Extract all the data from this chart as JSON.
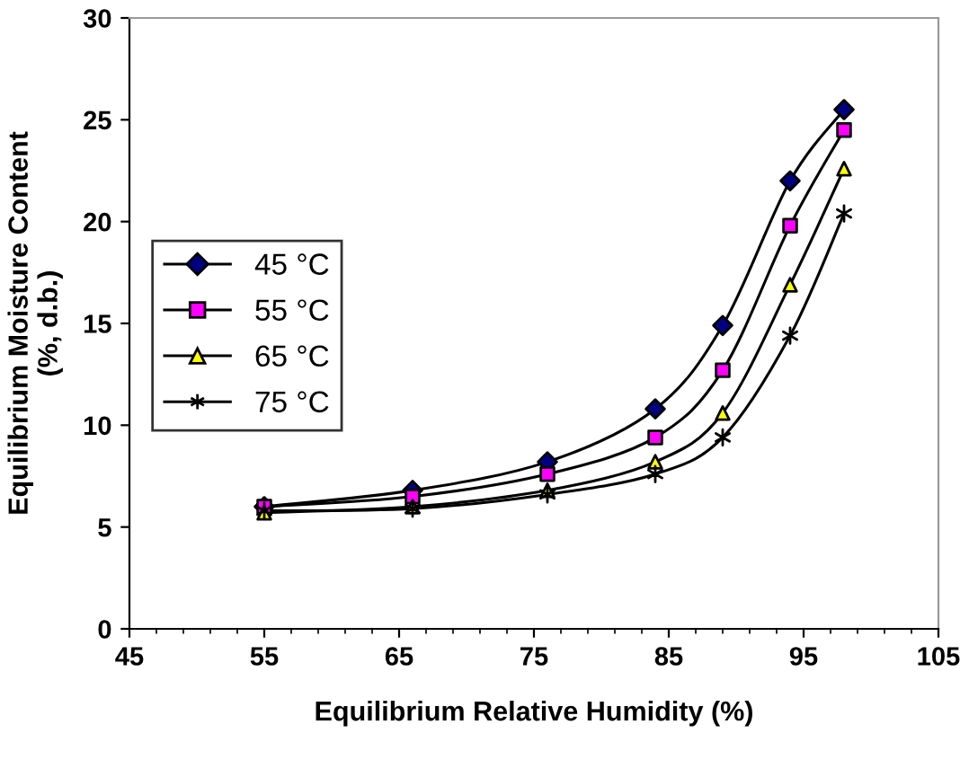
{
  "chart_data": {
    "type": "line",
    "xlabel": "Equilibrium Relative Humidity (%)",
    "ylabel": "Equilibrium Moisture Content\n(%, d.b.)",
    "x": [
      55,
      66,
      76,
      84,
      89,
      94,
      98
    ],
    "series": [
      {
        "name": "45 °C",
        "color": "#000080",
        "marker": "diamond",
        "values": [
          6.0,
          6.8,
          8.2,
          10.8,
          14.9,
          22.0,
          25.5
        ]
      },
      {
        "name": "55 °C",
        "color": "#ff00ff",
        "marker": "square",
        "values": [
          6.0,
          6.5,
          7.6,
          9.4,
          12.7,
          19.8,
          24.5
        ]
      },
      {
        "name": "65 °C",
        "color": "#ffff00",
        "marker": "triangle",
        "values": [
          5.7,
          6.0,
          6.8,
          8.2,
          10.6,
          16.9,
          22.6
        ]
      },
      {
        "name": "75 °C",
        "color": "#000000",
        "marker": "cross",
        "values": [
          5.8,
          5.9,
          6.6,
          7.6,
          9.4,
          14.4,
          20.4
        ]
      }
    ],
    "xlim": [
      45,
      105
    ],
    "xticks": [
      45,
      55,
      65,
      75,
      85,
      95,
      105
    ],
    "ylim": [
      0,
      30
    ],
    "yticks": [
      0,
      5,
      10,
      15,
      20,
      25,
      30
    ],
    "grid": false,
    "legend": "left",
    "line_style": "solid"
  }
}
